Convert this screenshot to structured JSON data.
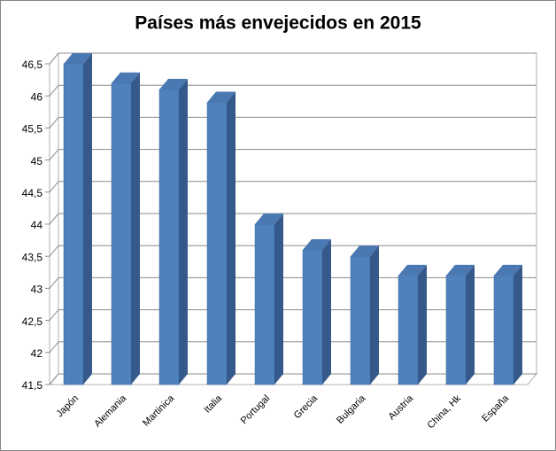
{
  "chart_data": {
    "type": "bar3d",
    "title": "Países más envejecidos en 2015",
    "categories": [
      "Japón",
      "Alemania",
      "Martinica",
      "Italia",
      "Portugal",
      "Grecia",
      "Bulgaria",
      "Austria",
      "China, Hk",
      "España"
    ],
    "values": [
      46.5,
      46.2,
      46.1,
      45.9,
      44,
      43.6,
      43.5,
      43.2,
      43.2,
      43.2
    ],
    "color": "#4f81bd",
    "ylim": [
      41.5,
      46.5
    ],
    "yticks": [
      {
        "value": 41.5,
        "label": "41,5"
      },
      42,
      {
        "value": 42.5,
        "label": "42,5"
      },
      43,
      {
        "value": 43.5,
        "label": "43,5"
      },
      44,
      {
        "value": 44.5,
        "label": "44,5"
      },
      45,
      {
        "value": 45.5,
        "label": "45,5"
      },
      46,
      {
        "value": 46.5,
        "label": "46,5"
      }
    ],
    "grid": true
  }
}
